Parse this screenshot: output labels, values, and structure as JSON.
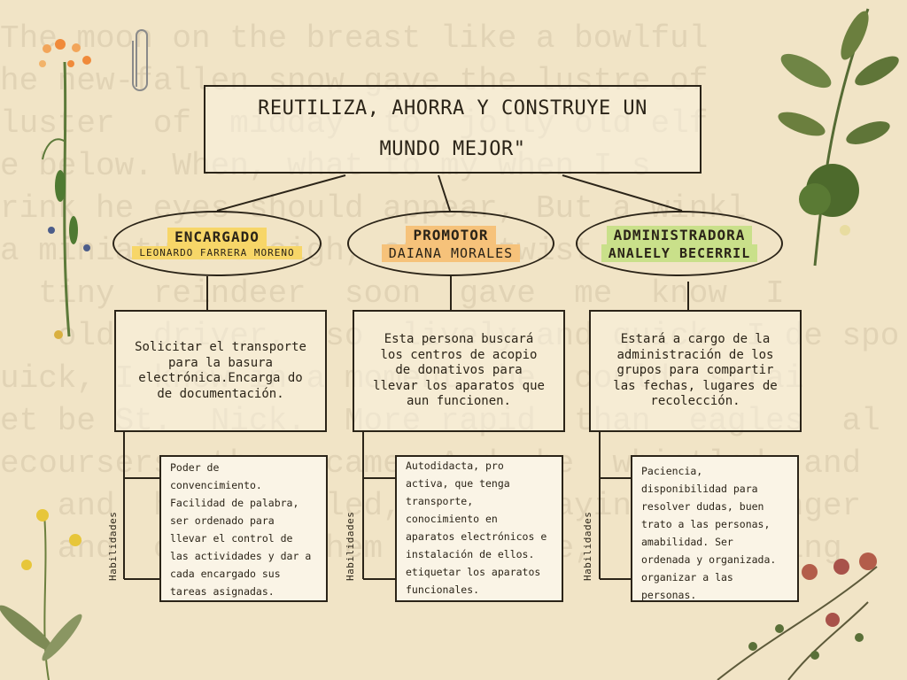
{
  "title": "REUTILIZA, AHORRA Y CONSTRUYE UN MUNDO MEJOR\"",
  "background_text": [
    "The moon on the breast like a bowlful",
    "he new-fallen snow gave the lustre of",
    "luster  of  midday  to  jolly old elf",
    "e below. When, what to my when I s",
    "rink he eyes should appear, But a winkl",
    "a miniature sleigh, and a twist of his",
    "  tiny  reindeer  soon  gave  me  know  I",
    "   old  driver,  so  lively and quick, I de spo",
    "uick, I knew in a moment  he  could  strai",
    "et be St.  Nick.  More rapid  than  eagles  al",
    "ecoursers  they  came, And  he  whistled  and",
    "   and  he  whistled,  and  laying his finger",
    "   and  called  them  by  nose,  and  giving"
  ],
  "roles": [
    {
      "role": "ENCARGADO",
      "person": "LEONARDO FARRERA MORENO",
      "description": "Solicitar el transporte para la basura electrónica.Encarga do de documentación.",
      "skills_label": "Habilidades",
      "skills": "Poder de convencimiento. Facilidad de palabra, ser ordenado para llevar el control de las actividades y dar a cada encargado sus tareas asignadas.",
      "color": "#f7d668"
    },
    {
      "role": "PROMOTOR",
      "person": "DAIANA MORALES",
      "description": "Esta persona buscará los centros de acopio de donativos para llevar los aparatos que aun funcionen.",
      "skills_label": "Habilidades",
      "skills": "Autodidacta, pro activa, que tenga transporte, conocimiento en aparatos electrónicos e instalación de ellos. etiquetar los aparatos funcionales.",
      "color": "#f6c27a"
    },
    {
      "role": "ADMINISTRADORA",
      "person": "ANALELY BECERRIL",
      "description": "Estará a cargo de la administración de los grupos para compartir las fechas, lugares de recolección.",
      "skills_label": "Habilidades",
      "skills": "Paciencia, disponibilidad para resolver dudas, buen trato a las personas, amabilidad. Ser ordenada y organizada. organizar a las personas.",
      "color": "#c9e08a"
    }
  ],
  "icons": {
    "paperclip": "paperclip-icon",
    "flowers": "flower-illustration",
    "leaves": "leaf-illustration"
  }
}
